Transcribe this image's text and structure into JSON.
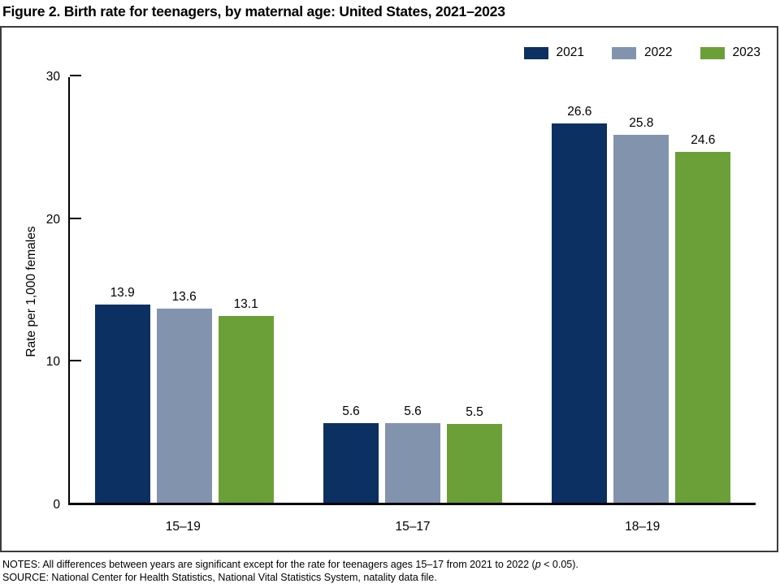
{
  "title": "Figure 2. Birth rate for teenagers, by maternal age: United States, 2021–2023",
  "chart_data": {
    "type": "bar",
    "title": "Figure 2. Birth rate for teenagers, by maternal age: United States, 2021–2023",
    "categories": [
      "15–19",
      "15–17",
      "18–19"
    ],
    "series": [
      {
        "name": "2021",
        "color": "#0b3061",
        "values": [
          13.9,
          5.6,
          26.6
        ]
      },
      {
        "name": "2022",
        "color": "#8294ad",
        "values": [
          13.6,
          5.6,
          25.8
        ]
      },
      {
        "name": "2023",
        "color": "#6ba038",
        "values": [
          13.1,
          5.5,
          24.6
        ]
      }
    ],
    "xlabel": "",
    "ylabel": "Rate per 1,000 females",
    "ylim": [
      0,
      30
    ],
    "yticks": [
      0,
      10,
      20,
      30
    ],
    "grid": false,
    "legend_position": "top-right",
    "data_labels": true
  },
  "axes": {
    "ylabel": "Rate per 1,000 females"
  },
  "footer": {
    "notes_prefix": "NOTES: All differences between years are significant except for the rate for teenagers ages 15–17 from 2021 to 2022 (",
    "notes_italic": "p",
    "notes_suffix": " < 0.05).",
    "source": "SOURCE: National Center for Health Statistics, National Vital Statistics System, natality data file."
  }
}
